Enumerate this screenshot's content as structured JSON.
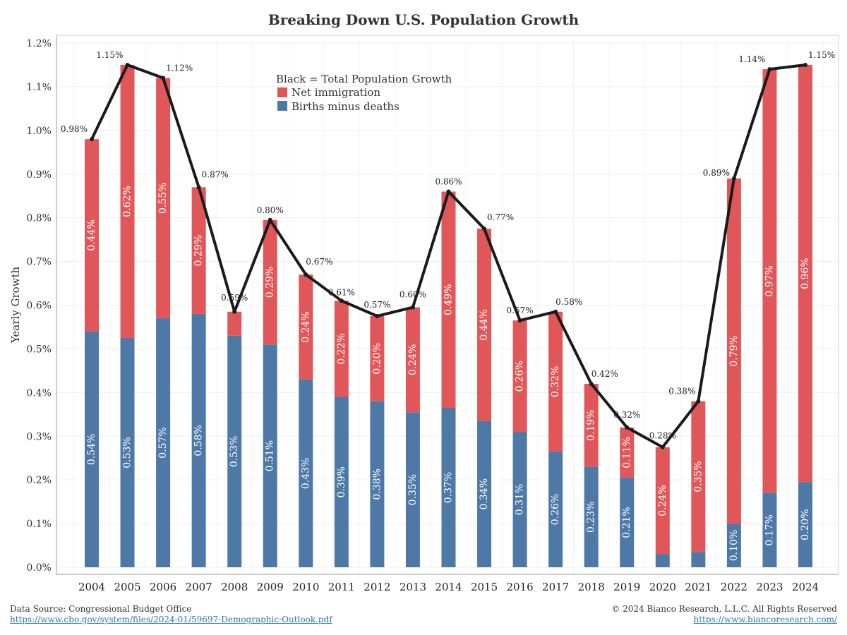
{
  "chart_data": {
    "type": "bar",
    "stacked": true,
    "title": "Breaking Down U.S. Population Growth",
    "ylabel": "Yearly Growth",
    "xlabel": "",
    "ylim": [
      0,
      1.2
    ],
    "yticks": [
      "0.0%",
      "0.1%",
      "0.2%",
      "0.3%",
      "0.4%",
      "0.5%",
      "0.6%",
      "0.7%",
      "0.8%",
      "0.9%",
      "1.0%",
      "1.1%",
      "1.2%"
    ],
    "categories": [
      "2004",
      "2005",
      "2006",
      "2007",
      "2008",
      "2009",
      "2010",
      "2011",
      "2012",
      "2013",
      "2014",
      "2015",
      "2016",
      "2017",
      "2018",
      "2019",
      "2020",
      "2021",
      "2022",
      "2023",
      "2024"
    ],
    "series": [
      {
        "name": "Births minus deaths",
        "color": "#4e79a7",
        "values": [
          0.54,
          0.525,
          0.57,
          0.58,
          0.53,
          0.51,
          0.43,
          0.39,
          0.38,
          0.355,
          0.365,
          0.335,
          0.31,
          0.265,
          0.23,
          0.205,
          0.03,
          0.035,
          0.1,
          0.17,
          0.195
        ],
        "labels": [
          "0.54%",
          "0.53%",
          "0.57%",
          "0.58%",
          "0.53%",
          "0.51%",
          "0.43%",
          "0.39%",
          "0.38%",
          "0.35%",
          "0.37%",
          "0.34%",
          "0.31%",
          "0.26%",
          "0.23%",
          "0.21%",
          "",
          "",
          "0.10%",
          "0.17%",
          "0.20%"
        ]
      },
      {
        "name": "Net immigration",
        "color": "#e15759",
        "values": [
          0.44,
          0.625,
          0.55,
          0.29,
          0.055,
          0.285,
          0.24,
          0.22,
          0.195,
          0.24,
          0.495,
          0.44,
          0.255,
          0.32,
          0.19,
          0.115,
          0.245,
          0.345,
          0.79,
          0.97,
          0.955
        ],
        "labels": [
          "0.44%",
          "0.62%",
          "0.55%",
          "0.29%",
          "",
          "0.29%",
          "0.24%",
          "0.22%",
          "0.20%",
          "0.24%",
          "0.49%",
          "0.44%",
          "0.26%",
          "0.32%",
          "0.19%",
          "0.11%",
          "0.24%",
          "0.35%",
          "0.79%",
          "0.97%",
          "0.96%"
        ]
      }
    ],
    "total_line": {
      "name": "Total Population Growth",
      "color": "#1a1a1a",
      "values": [
        0.98,
        1.15,
        1.12,
        0.87,
        0.585,
        0.795,
        0.67,
        0.61,
        0.575,
        0.595,
        0.86,
        0.775,
        0.565,
        0.585,
        0.42,
        0.32,
        0.275,
        0.38,
        0.89,
        1.14,
        1.15
      ],
      "labels": [
        "0.98%",
        "1.15%",
        "1.12%",
        "0.87%",
        "0.59%",
        "0.80%",
        "0.67%",
        "0.61%",
        "0.57%",
        "0.60%",
        "0.86%",
        "0.77%",
        "0.57%",
        "0.58%",
        "0.42%",
        "0.32%",
        "0.28%",
        "0.38%",
        "0.89%",
        "1.14%",
        "1.15%"
      ]
    },
    "legend": {
      "position": "top-center",
      "heading": "Black = Total Population Growth",
      "items": [
        "Net immigration",
        "Births minus deaths"
      ]
    }
  },
  "footer": {
    "source_label": "Data Source: Congressional Budget Office",
    "source_url": "https://www.cbo.gov/system/files/2024-01/59697-Demographic-Outlook.pdf",
    "copyright": "© 2024 Bianco Research, L.L.C. All Rights Reserved",
    "site_url": "https://www.biancoresearch.com/"
  }
}
